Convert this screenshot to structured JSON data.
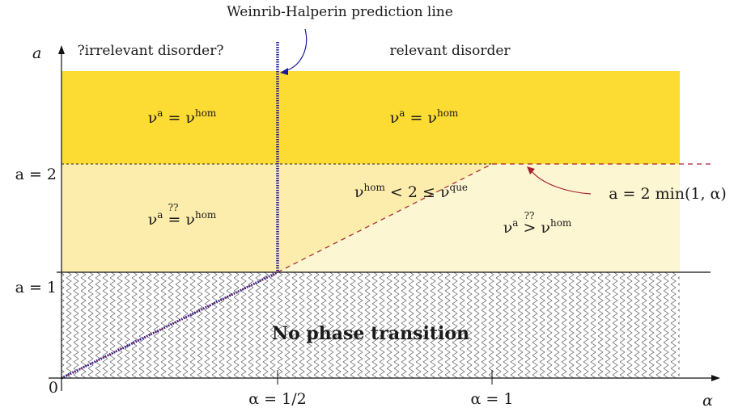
{
  "annotation_top": "Weinrib-Halperin prediction line",
  "header_left": "?irrelevant disorder?",
  "header_right": "relevant disorder",
  "y_axis_label": "a",
  "x_axis_label": "α",
  "y_ticks": {
    "a2": "a = 2",
    "a1": "a = 1",
    "zero": "0"
  },
  "x_ticks": {
    "half": "α = 1/2",
    "one": "α = 1"
  },
  "region_no_transition": "No phase transition",
  "curve_label": "a = 2 min(1, α)",
  "regions": {
    "top_left": "ν^a = ν^hom",
    "top_right": "ν^a = ν^hom",
    "mid_left": "ν^a ?= ν^hom",
    "mid_center": "ν^hom < 2 ≤ ν^que",
    "mid_right": "ν^a ?> ν^hom"
  },
  "colors": {
    "top_band": "#fcdc33",
    "mid_left": "#fdedac",
    "mid_right": "#fdf6d2",
    "dashed_red": "#a4212f",
    "blue_line": "#1a1a9a"
  }
}
